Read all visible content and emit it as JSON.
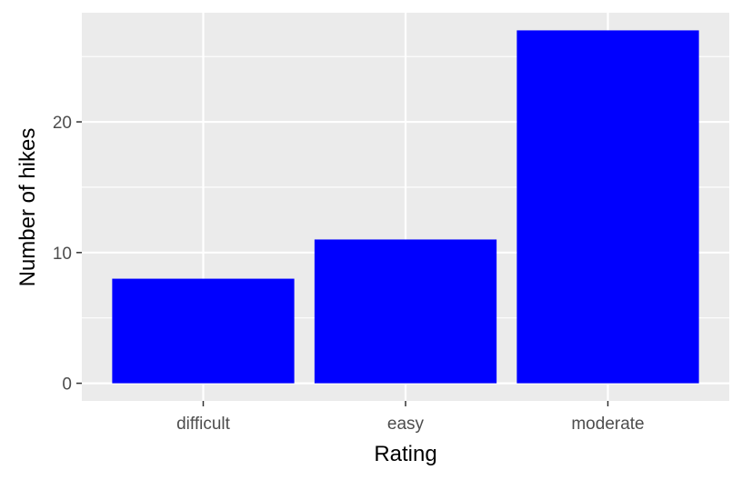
{
  "chart_data": {
    "type": "bar",
    "categories": [
      "difficult",
      "easy",
      "moderate"
    ],
    "values": [
      8,
      11,
      27
    ],
    "title": "",
    "xlabel": "Rating",
    "ylabel": "Number of hikes",
    "ylim": [
      -1.35,
      28.35
    ],
    "y_ticks": [
      0,
      10,
      20
    ],
    "y_minor_ticks": [
      5,
      15,
      25
    ],
    "grid": true,
    "legend": "none",
    "colors": {
      "bar": "#0000ff",
      "panel_background": "#ebebeb",
      "grid_major": "#ffffff",
      "grid_minor": "#ffffff",
      "tick_text": "#4d4d4d",
      "axis_title": "#000000"
    }
  }
}
